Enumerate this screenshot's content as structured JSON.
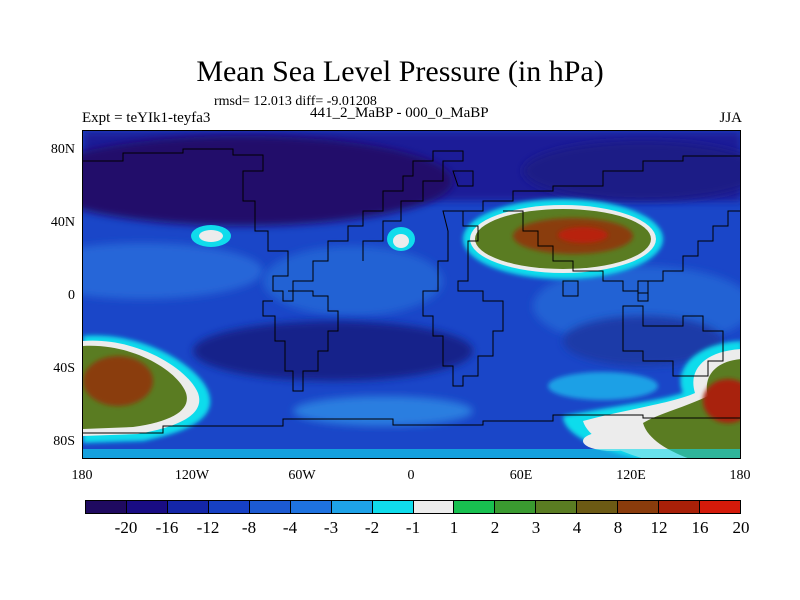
{
  "title": "Mean Sea Level Pressure (in hPa)",
  "stats": "rmsd= 12.013 diff= -9.01208",
  "subtitle": "441_2_MaBP - 000_0_MaBP",
  "experiment": "Expt = teYIk1-teyfa3",
  "season": "JJA",
  "map": {
    "lat_ticks": [
      "80N",
      "40N",
      "0",
      "40S",
      "80S"
    ],
    "lon_ticks": [
      "180",
      "120W",
      "60W",
      "0",
      "60E",
      "120E",
      "180"
    ]
  },
  "colorbar": {
    "labels": [
      "-20",
      "-16",
      "-12",
      "-8",
      "-4",
      "-3",
      "-2",
      "-1",
      "1",
      "2",
      "3",
      "4",
      "8",
      "12",
      "16",
      "20"
    ],
    "colors": [
      "#1f0a60",
      "#190c84",
      "#1426a8",
      "#1640c4",
      "#1c5ad2",
      "#1e72e0",
      "#1ea2e8",
      "#10dcec",
      "#ececec",
      "#18c050",
      "#3a9a30",
      "#5a7c22",
      "#6c5a14",
      "#8a3c0c",
      "#a82008",
      "#d41a0a"
    ]
  }
}
